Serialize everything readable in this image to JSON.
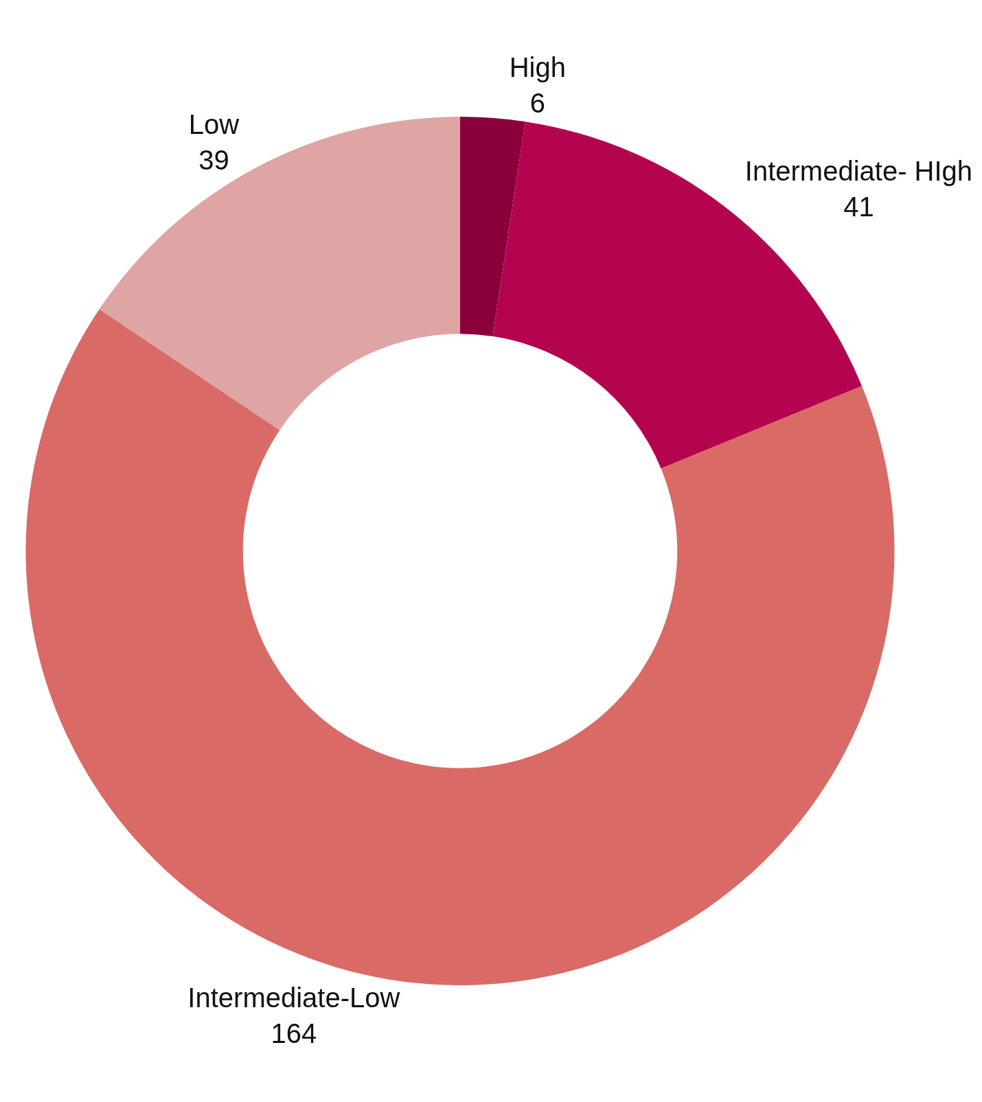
{
  "chart_data": {
    "type": "donut",
    "categories": [
      "High",
      "Intermediate- HIgh",
      "Intermediate-Low",
      "Low"
    ],
    "values": [
      6,
      41,
      164,
      39
    ],
    "colors": [
      "#8b003b",
      "#b5044f",
      "#d96a65",
      "#dea5a4"
    ],
    "data_labels": true,
    "legend": false
  }
}
